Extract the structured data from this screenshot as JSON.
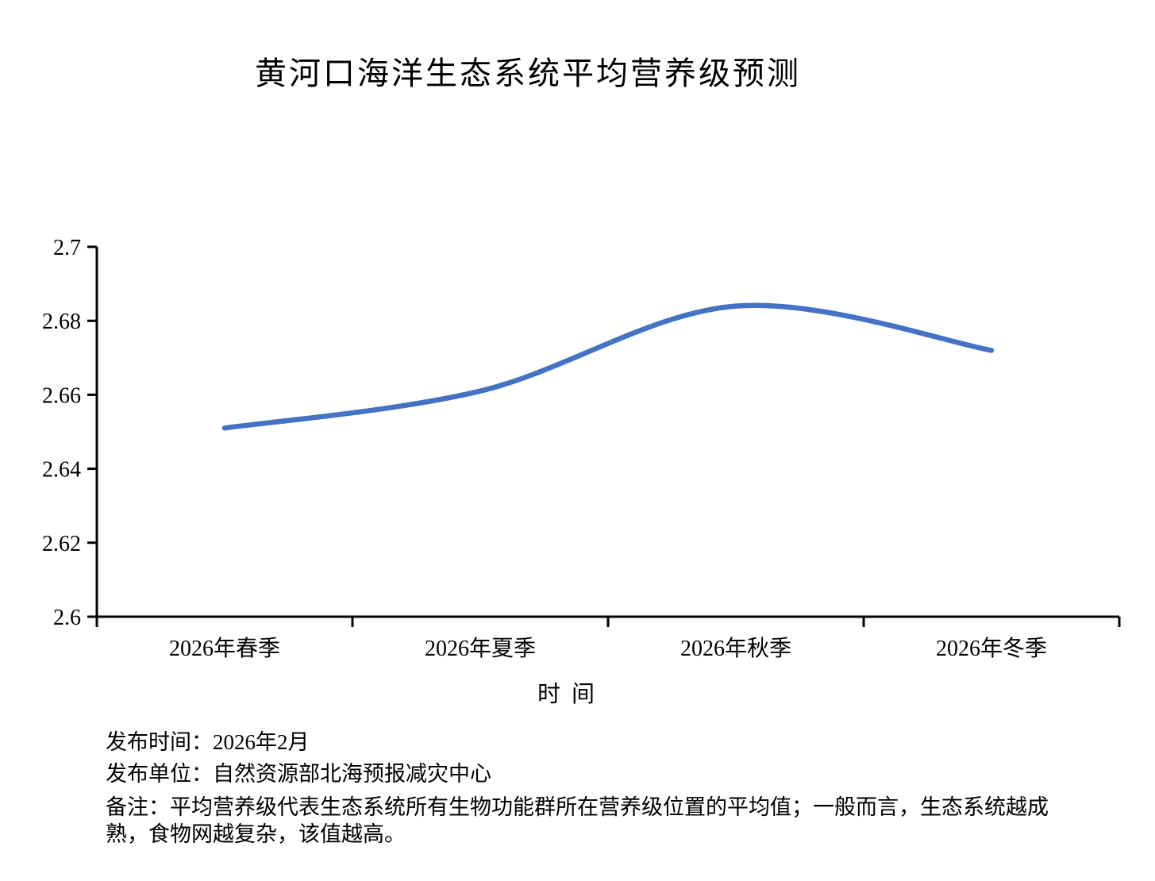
{
  "title": "黄河口海洋生态系统平均营养级预测",
  "chart_data": {
    "type": "line",
    "categories": [
      "2026年春季",
      "2026年夏季",
      "2026年秋季",
      "2026年冬季"
    ],
    "values": [
      2.651,
      2.661,
      2.684,
      2.672
    ],
    "title": "黄河口海洋生态系统平均营养级预测",
    "xlabel": "时间",
    "ylabel": "",
    "ylim": [
      2.6,
      2.7
    ],
    "ytick_labels": [
      "2.6",
      "2.62",
      "2.64",
      "2.66",
      "2.68",
      "2.7"
    ],
    "grid": false,
    "legend": "none",
    "smooth": true,
    "line_color": "#4472C4",
    "axis_color": "#000000"
  },
  "footer": {
    "pub_time": "发布时间：2026年2月",
    "pub_unit": "发布单位：自然资源部北海预报减灾中心",
    "note_line1": "备注：平均营养级代表生态系统所有生物功能群所在营养级位置的平均值；一般而言，生态系统越成",
    "note_line2": "熟，食物网越复杂，该值越高。"
  }
}
